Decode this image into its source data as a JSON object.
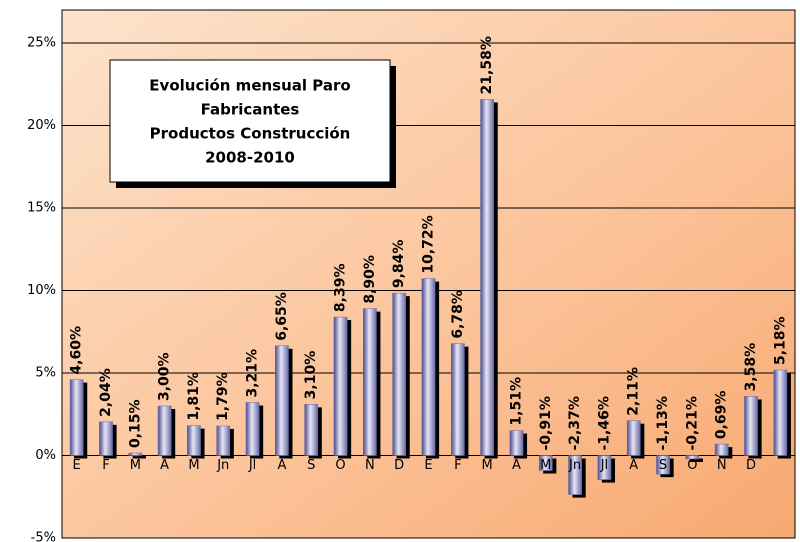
{
  "chart_data": {
    "type": "bar",
    "title": [
      "Evolución mensual Paro",
      "Fabricantes",
      "Productos Construcción",
      "2008-2010"
    ],
    "categories": [
      "E",
      "F",
      "M",
      "A",
      "M",
      "Jn",
      "Jl",
      "A",
      "S",
      "O",
      "N",
      "D",
      "E",
      "F",
      "M",
      "A",
      "M",
      "Jn",
      "Jl",
      "A",
      "S",
      "O",
      "N",
      "D",
      null
    ],
    "values": [
      4.6,
      2.04,
      0.15,
      3.0,
      1.81,
      1.79,
      3.21,
      6.65,
      3.1,
      8.39,
      8.9,
      9.84,
      10.72,
      6.78,
      21.58,
      1.51,
      -0.91,
      -2.37,
      -1.46,
      2.11,
      -1.13,
      -0.21,
      0.69,
      3.58,
      5.18
    ],
    "value_labels": [
      "4,60%",
      "2,04%",
      "0,15%",
      "3,00%",
      "1,81%",
      "1,79%",
      "3,21%",
      "6,65%",
      "3,10%",
      "8,39%",
      "8,90%",
      "9,84%",
      "10,72%",
      "6,78%",
      "21,58%",
      "1,51%",
      "-0,91%",
      "-2,37%",
      "-1,46%",
      "2,11%",
      "-1,13%",
      "-0,21%",
      "0,69%",
      "3,58%",
      "5,18%"
    ],
    "color": "#6a6aa8",
    "ylim": [
      -5,
      27
    ],
    "yticks": [
      {
        "value": -5,
        "label": "-5%"
      },
      {
        "value": 0,
        "label": "0%"
      },
      {
        "value": 5,
        "label": "5%"
      },
      {
        "value": 10,
        "label": "10%"
      },
      {
        "value": 15,
        "label": "15%"
      },
      {
        "value": 20,
        "label": "20%"
      },
      {
        "value": 25,
        "label": "25%"
      }
    ],
    "grid": true
  }
}
